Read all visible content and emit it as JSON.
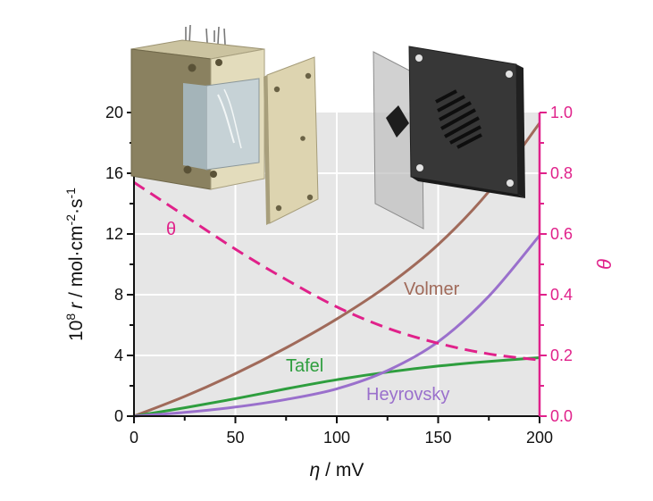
{
  "chart_data": {
    "type": "line",
    "xlabel": {
      "symbol": "η",
      "unit": " / mV"
    },
    "ylabel_left": {
      "prefix": "10",
      "exp": "8",
      "r": "r",
      "unit": " / mol·cm",
      "exp2": "-2",
      "unit2": "·s",
      "exp3": "-1"
    },
    "ylabel_right": "θ",
    "xlim": [
      0,
      200
    ],
    "ylim_left": [
      0,
      20
    ],
    "ylim_right": [
      0.0,
      1.0
    ],
    "x_ticks": [
      "0",
      "50",
      "100",
      "150",
      "200"
    ],
    "y_ticks_left": [
      "0",
      "4",
      "8",
      "12",
      "16",
      "20"
    ],
    "y_ticks_right": [
      "0.0",
      "0.2",
      "0.4",
      "0.6",
      "0.8",
      "1.0"
    ],
    "colors": {
      "volmer": "#a06a5a",
      "tafel": "#2e9e3e",
      "heyrovsky": "#9a70cc",
      "theta": "#e0218a",
      "plot_bg": "#e6e6e6"
    },
    "series": [
      {
        "name": "Volmer",
        "axis": "left",
        "x": [
          0,
          25,
          50,
          75,
          100,
          125,
          150,
          175,
          200
        ],
        "y": [
          0.0,
          1.3,
          2.8,
          4.5,
          6.4,
          8.6,
          11.3,
          14.8,
          19.3
        ]
      },
      {
        "name": "Tafel",
        "axis": "left",
        "x": [
          0,
          25,
          50,
          75,
          100,
          125,
          150,
          175,
          200
        ],
        "y": [
          0.0,
          0.55,
          1.15,
          1.8,
          2.4,
          2.9,
          3.3,
          3.6,
          3.85
        ]
      },
      {
        "name": "Heyrovsky",
        "axis": "left",
        "x": [
          0,
          25,
          50,
          75,
          100,
          125,
          150,
          175,
          200
        ],
        "y": [
          0.0,
          0.25,
          0.6,
          1.1,
          1.8,
          3.0,
          4.9,
          7.9,
          11.9
        ]
      },
      {
        "name": "θ",
        "axis": "right",
        "style": "dashed",
        "x": [
          0,
          25,
          50,
          75,
          100,
          125,
          150,
          175,
          200
        ],
        "y": [
          0.77,
          0.66,
          0.55,
          0.45,
          0.36,
          0.29,
          0.24,
          0.205,
          0.185
        ]
      }
    ],
    "labels": {
      "volmer": "Volmer",
      "tafel": "Tafel",
      "heyrovsky": "Heyrovsky",
      "theta": "θ"
    }
  }
}
